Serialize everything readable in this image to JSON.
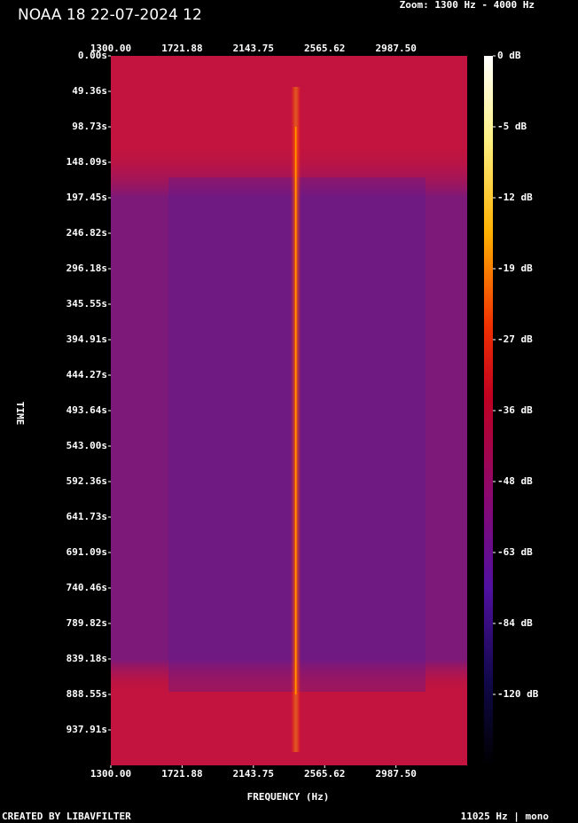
{
  "chart_data": {
    "type": "spectrogram",
    "title": "NOAA 18 22-07-2024 12",
    "zoom_label": "Zoom: 1300 Hz - 4000 Hz",
    "xlabel": "FREQUENCY (Hz)",
    "ylabel": "TIME",
    "footer_left": "CREATED BY LIBAVFILTER",
    "footer_right": "11025 Hz | mono",
    "xlim": [
      1300,
      3409
    ],
    "xticks": [
      {
        "value": 1300,
        "label": "1300.00"
      },
      {
        "value": 1721.88,
        "label": "1721.88"
      },
      {
        "value": 2143.75,
        "label": "2143.75"
      },
      {
        "value": 2565.62,
        "label": "2565.62"
      },
      {
        "value": 2987.5,
        "label": "2987.50"
      }
    ],
    "ylim": [
      0,
      987.27
    ],
    "yticks": [
      {
        "value": 0,
        "label": "0.00s"
      },
      {
        "value": 49.36,
        "label": "49.36s"
      },
      {
        "value": 98.73,
        "label": "98.73s"
      },
      {
        "value": 148.09,
        "label": "148.09s"
      },
      {
        "value": 197.45,
        "label": "197.45s"
      },
      {
        "value": 246.82,
        "label": "246.82s"
      },
      {
        "value": 296.18,
        "label": "296.18s"
      },
      {
        "value": 345.55,
        "label": "345.55s"
      },
      {
        "value": 394.91,
        "label": "394.91s"
      },
      {
        "value": 444.27,
        "label": "444.27s"
      },
      {
        "value": 493.64,
        "label": "493.64s"
      },
      {
        "value": 543.0,
        "label": "543.00s"
      },
      {
        "value": 592.36,
        "label": "592.36s"
      },
      {
        "value": 641.73,
        "label": "641.73s"
      },
      {
        "value": 691.09,
        "label": "691.09s"
      },
      {
        "value": 740.46,
        "label": "740.46s"
      },
      {
        "value": 789.82,
        "label": "789.82s"
      },
      {
        "value": 839.18,
        "label": "839.18s"
      },
      {
        "value": 888.55,
        "label": "888.55s"
      },
      {
        "value": 937.91,
        "label": "937.91s"
      }
    ],
    "colorbar_ticks": [
      {
        "value": 0,
        "label": "0 dB"
      },
      {
        "value": -5,
        "label": "-5 dB"
      },
      {
        "value": -12,
        "label": "-12 dB"
      },
      {
        "value": -19,
        "label": "-19 dB"
      },
      {
        "value": -27,
        "label": "-27 dB"
      },
      {
        "value": -36,
        "label": "-36 dB"
      },
      {
        "value": -48,
        "label": "-48 dB"
      },
      {
        "value": -63,
        "label": "-63 dB"
      },
      {
        "value": -84,
        "label": "-84 dB"
      },
      {
        "value": -120,
        "label": "-120 dB"
      }
    ],
    "carrier_frequency": 2395,
    "carrier_time": [
      98.73,
      888.55
    ]
  }
}
